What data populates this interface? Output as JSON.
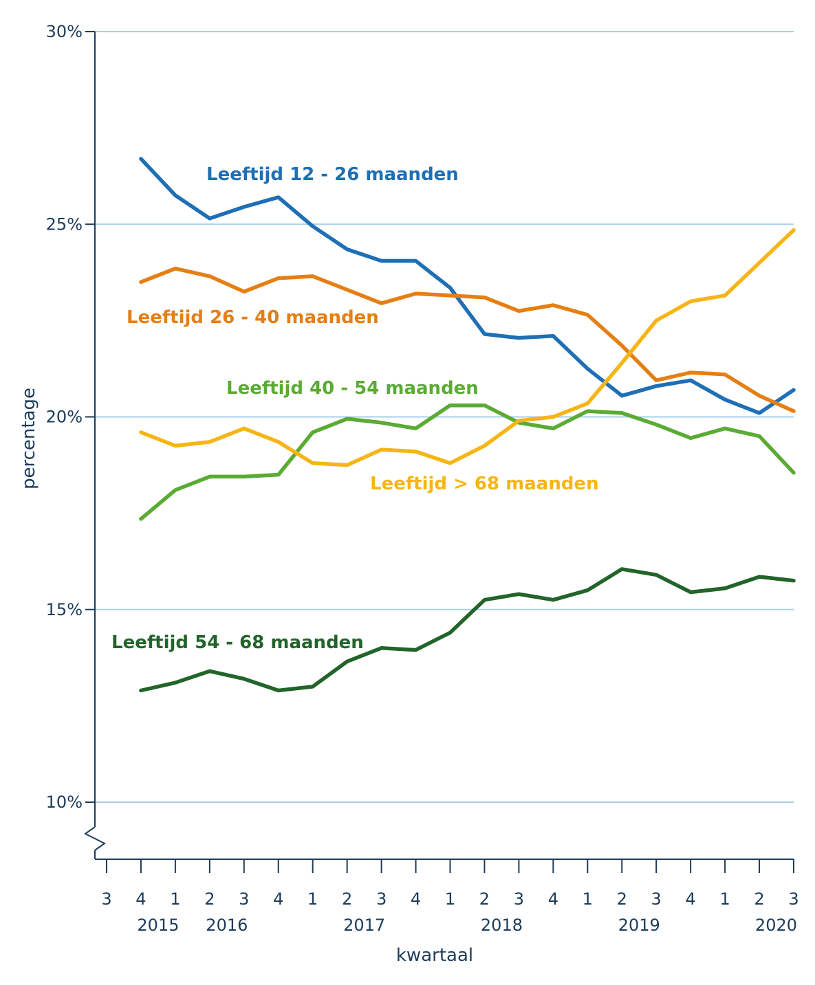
{
  "chart_data": {
    "type": "line",
    "xlabel": "kwartaal",
    "ylabel": "percentage",
    "ylim": [
      10,
      30
    ],
    "axis_break": true,
    "grid": "horizontal",
    "y_ticks": [
      {
        "value": 10,
        "label": "10%"
      },
      {
        "value": 15,
        "label": "15%"
      },
      {
        "value": 20,
        "label": "20%"
      },
      {
        "value": 25,
        "label": "25%"
      },
      {
        "value": 30,
        "label": "30%"
      }
    ],
    "x_quarters": [
      "3",
      "4",
      "1",
      "2",
      "3",
      "4",
      "1",
      "2",
      "3",
      "4",
      "1",
      "2",
      "3",
      "4",
      "1",
      "2",
      "3",
      "4",
      "1",
      "2",
      "3"
    ],
    "x_years": [
      {
        "label": "2015",
        "index": 1
      },
      {
        "label": "2016",
        "index": 3
      },
      {
        "label": "2017",
        "index": 7
      },
      {
        "label": "2018",
        "index": 11
      },
      {
        "label": "2019",
        "index": 15
      },
      {
        "label": "2020",
        "index": 19
      }
    ],
    "series": [
      {
        "name": "Leeftijd 12 - 26 maanden",
        "color": "#1e6fb5",
        "start_index": 1,
        "values": [
          26.7,
          25.75,
          25.15,
          25.45,
          25.7,
          24.95,
          24.35,
          24.05,
          24.05,
          23.35,
          22.15,
          22.05,
          22.1,
          21.25,
          20.55,
          20.8,
          20.95,
          20.45,
          20.1,
          20.7
        ]
      },
      {
        "name": "Leeftijd 26 - 40 maanden",
        "color": "#e57f14",
        "start_index": 1,
        "values": [
          23.5,
          23.85,
          23.65,
          23.25,
          23.6,
          23.65,
          23.3,
          22.95,
          23.2,
          23.15,
          23.1,
          22.75,
          22.9,
          22.65,
          21.85,
          20.95,
          21.15,
          21.1,
          20.55,
          20.15
        ]
      },
      {
        "name": "Leeftijd 40 - 54 maanden",
        "color": "#5aab33",
        "start_index": 1,
        "values": [
          17.35,
          18.1,
          18.45,
          18.45,
          18.5,
          19.6,
          19.95,
          19.85,
          19.7,
          20.3,
          20.3,
          19.85,
          19.7,
          20.15,
          20.1,
          19.8,
          19.45,
          19.7,
          19.5,
          18.55
        ]
      },
      {
        "name": "Leeftijd > 68 maanden",
        "color": "#f6b514",
        "start_index": 1,
        "values": [
          19.6,
          19.25,
          19.35,
          19.7,
          19.35,
          18.8,
          18.75,
          19.15,
          19.1,
          18.8,
          19.25,
          19.9,
          20.0,
          20.35,
          21.4,
          22.5,
          23.0,
          23.15,
          24.0,
          24.85
        ]
      },
      {
        "name": "Leeftijd 54 - 68 maanden",
        "color": "#22642a",
        "start_index": 1,
        "values": [
          12.9,
          13.1,
          13.4,
          13.2,
          12.9,
          13.0,
          13.65,
          14.0,
          13.95,
          14.4,
          15.25,
          15.4,
          15.25,
          15.5,
          16.05,
          15.9,
          15.45,
          15.55,
          15.85,
          15.75
        ]
      }
    ]
  }
}
